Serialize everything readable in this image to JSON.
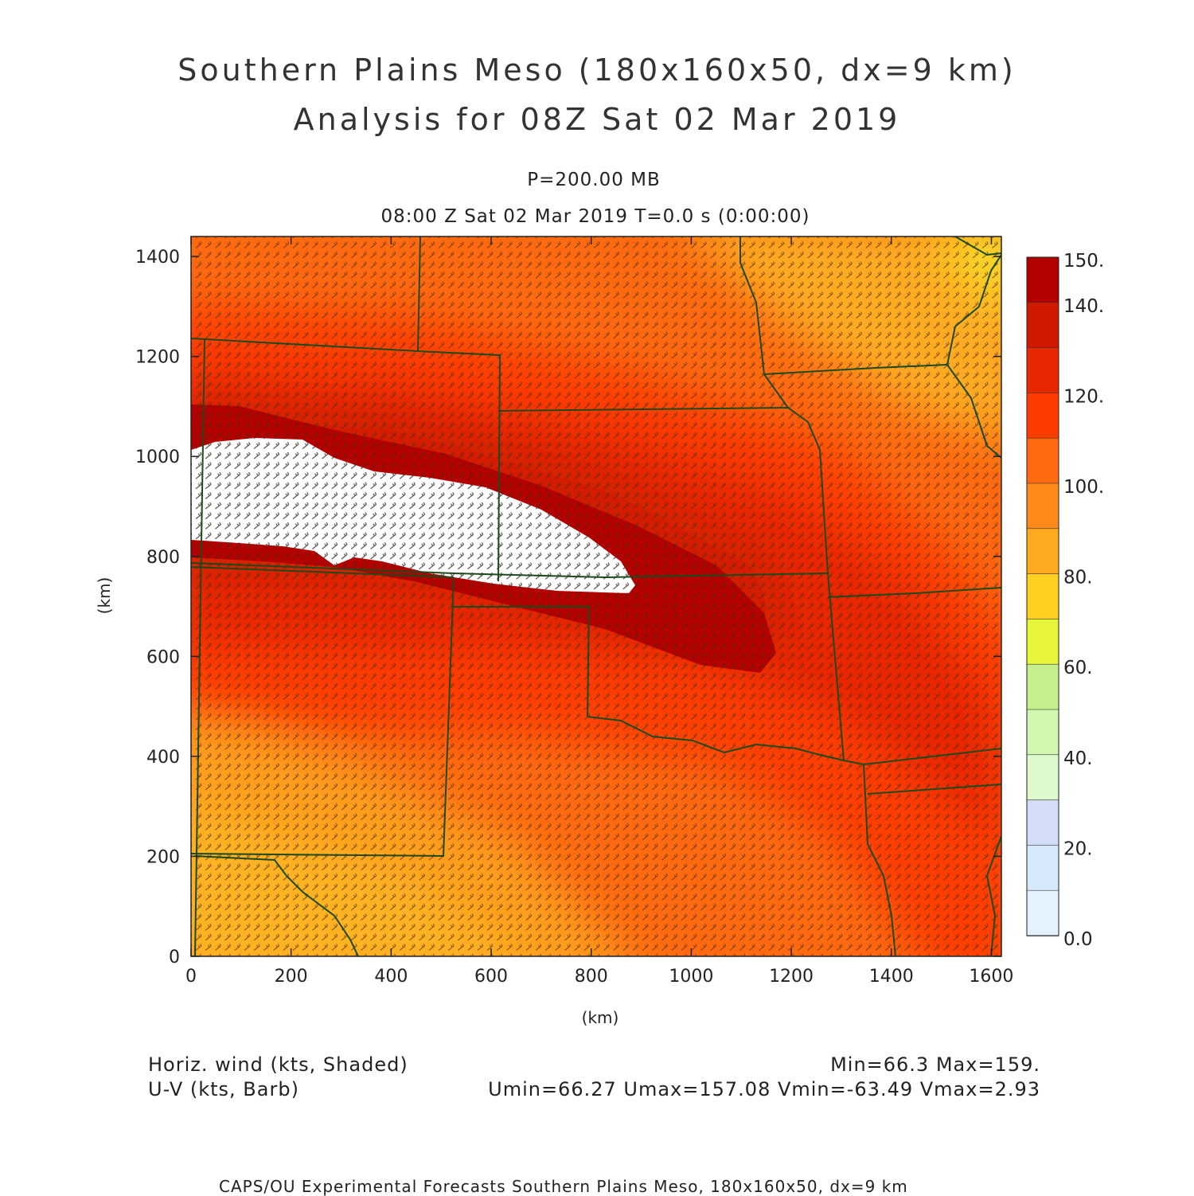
{
  "header": {
    "title_line1": "Southern Plains Meso (180x160x50, dx=9 km)",
    "title_line2": "Analysis for 08Z Sat 02 Mar 2019",
    "level": "P=200.00 MB",
    "valid_time": "08:00 Z Sat 02 Mar 2019    T=0.0 s (0:00:00)"
  },
  "axes": {
    "x_label": "(km)",
    "y_label": "(km)",
    "x_ticks": [
      "0",
      "200",
      "400",
      "600",
      "800",
      "1000",
      "1200",
      "1400",
      "1600"
    ],
    "y_ticks": [
      "0",
      "200",
      "400",
      "600",
      "800",
      "1000",
      "1200",
      "1400"
    ],
    "x_range_km": [
      0,
      1620
    ],
    "y_range_km": [
      0,
      1440
    ]
  },
  "colorbar": {
    "labels": [
      "150.",
      "140.",
      "120.",
      "100.",
      "80.",
      "60.",
      "40.",
      "20.",
      "0.0"
    ],
    "colors": [
      "#b30000",
      "#cf1a00",
      "#e82800",
      "#ff3c00",
      "#ff6a10",
      "#ff8a1a",
      "#ffab22",
      "#ffd020",
      "#e6f53a",
      "#c6f08e",
      "#d2f7b0",
      "#dff9cf",
      "#d4ddf7",
      "#d6e9fb",
      "#e3f2fd"
    ]
  },
  "legend": {
    "left_line1": "Horiz. wind (kts, Shaded)",
    "left_line2": "U-V (kts, Barb)",
    "right_line1": "Min=66.3 Max=159.",
    "right_line2": "Umin=66.27 Umax=157.08 Vmin=-63.49 Vmax=2.93"
  },
  "footer": "CAPS/OU Experimental Forecasts  Southern Plains Meso, 180x160x50, dx=9 km",
  "field": {
    "name": "Horiz. wind speed (kts)",
    "min": 66.3,
    "max": 159,
    "jet_axis": "WNW-ESE, max over Kansas / north Oklahoma",
    "exceed_150_region": "white-shaded core, west-central Kansas"
  }
}
